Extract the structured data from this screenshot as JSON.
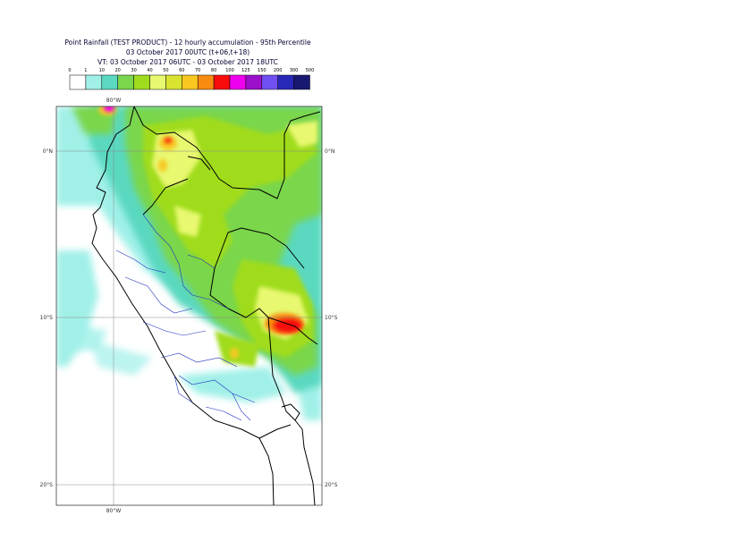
{
  "title_lines": [
    "Point Rainfall (TEST PRODUCT) - 12 hourly accumulation - 95th Percentile",
    "03 October 2017 00UTC (t+06,t+18)",
    "VT: 03 October 2017 06UTC - 03 October 2017 18UTC"
  ],
  "legend": {
    "thresholds": [
      "0",
      "1",
      "10",
      "20",
      "30",
      "40",
      "50",
      "60",
      "70",
      "80",
      "100",
      "125",
      "150",
      "200",
      "300",
      "500"
    ],
    "colors": [
      "#ffffff",
      "#a0f0e8",
      "#5ad8c0",
      "#7ad64c",
      "#a0dc1e",
      "#e8f870",
      "#d8e430",
      "#f8c820",
      "#f88c10",
      "#f80c0c",
      "#ee00ee",
      "#9c10cc",
      "#7050f0",
      "#2828b8",
      "#181870"
    ]
  },
  "map_labels": {
    "lon_top": "80°W",
    "lon_bottom": "80°W",
    "lat_0_left": "0°N",
    "lat_0_right": "0°N",
    "lat_10_left": "10°S",
    "lat_10_right": "10°S",
    "lat_20_left": "20°S",
    "lat_20_right": "20°S"
  }
}
